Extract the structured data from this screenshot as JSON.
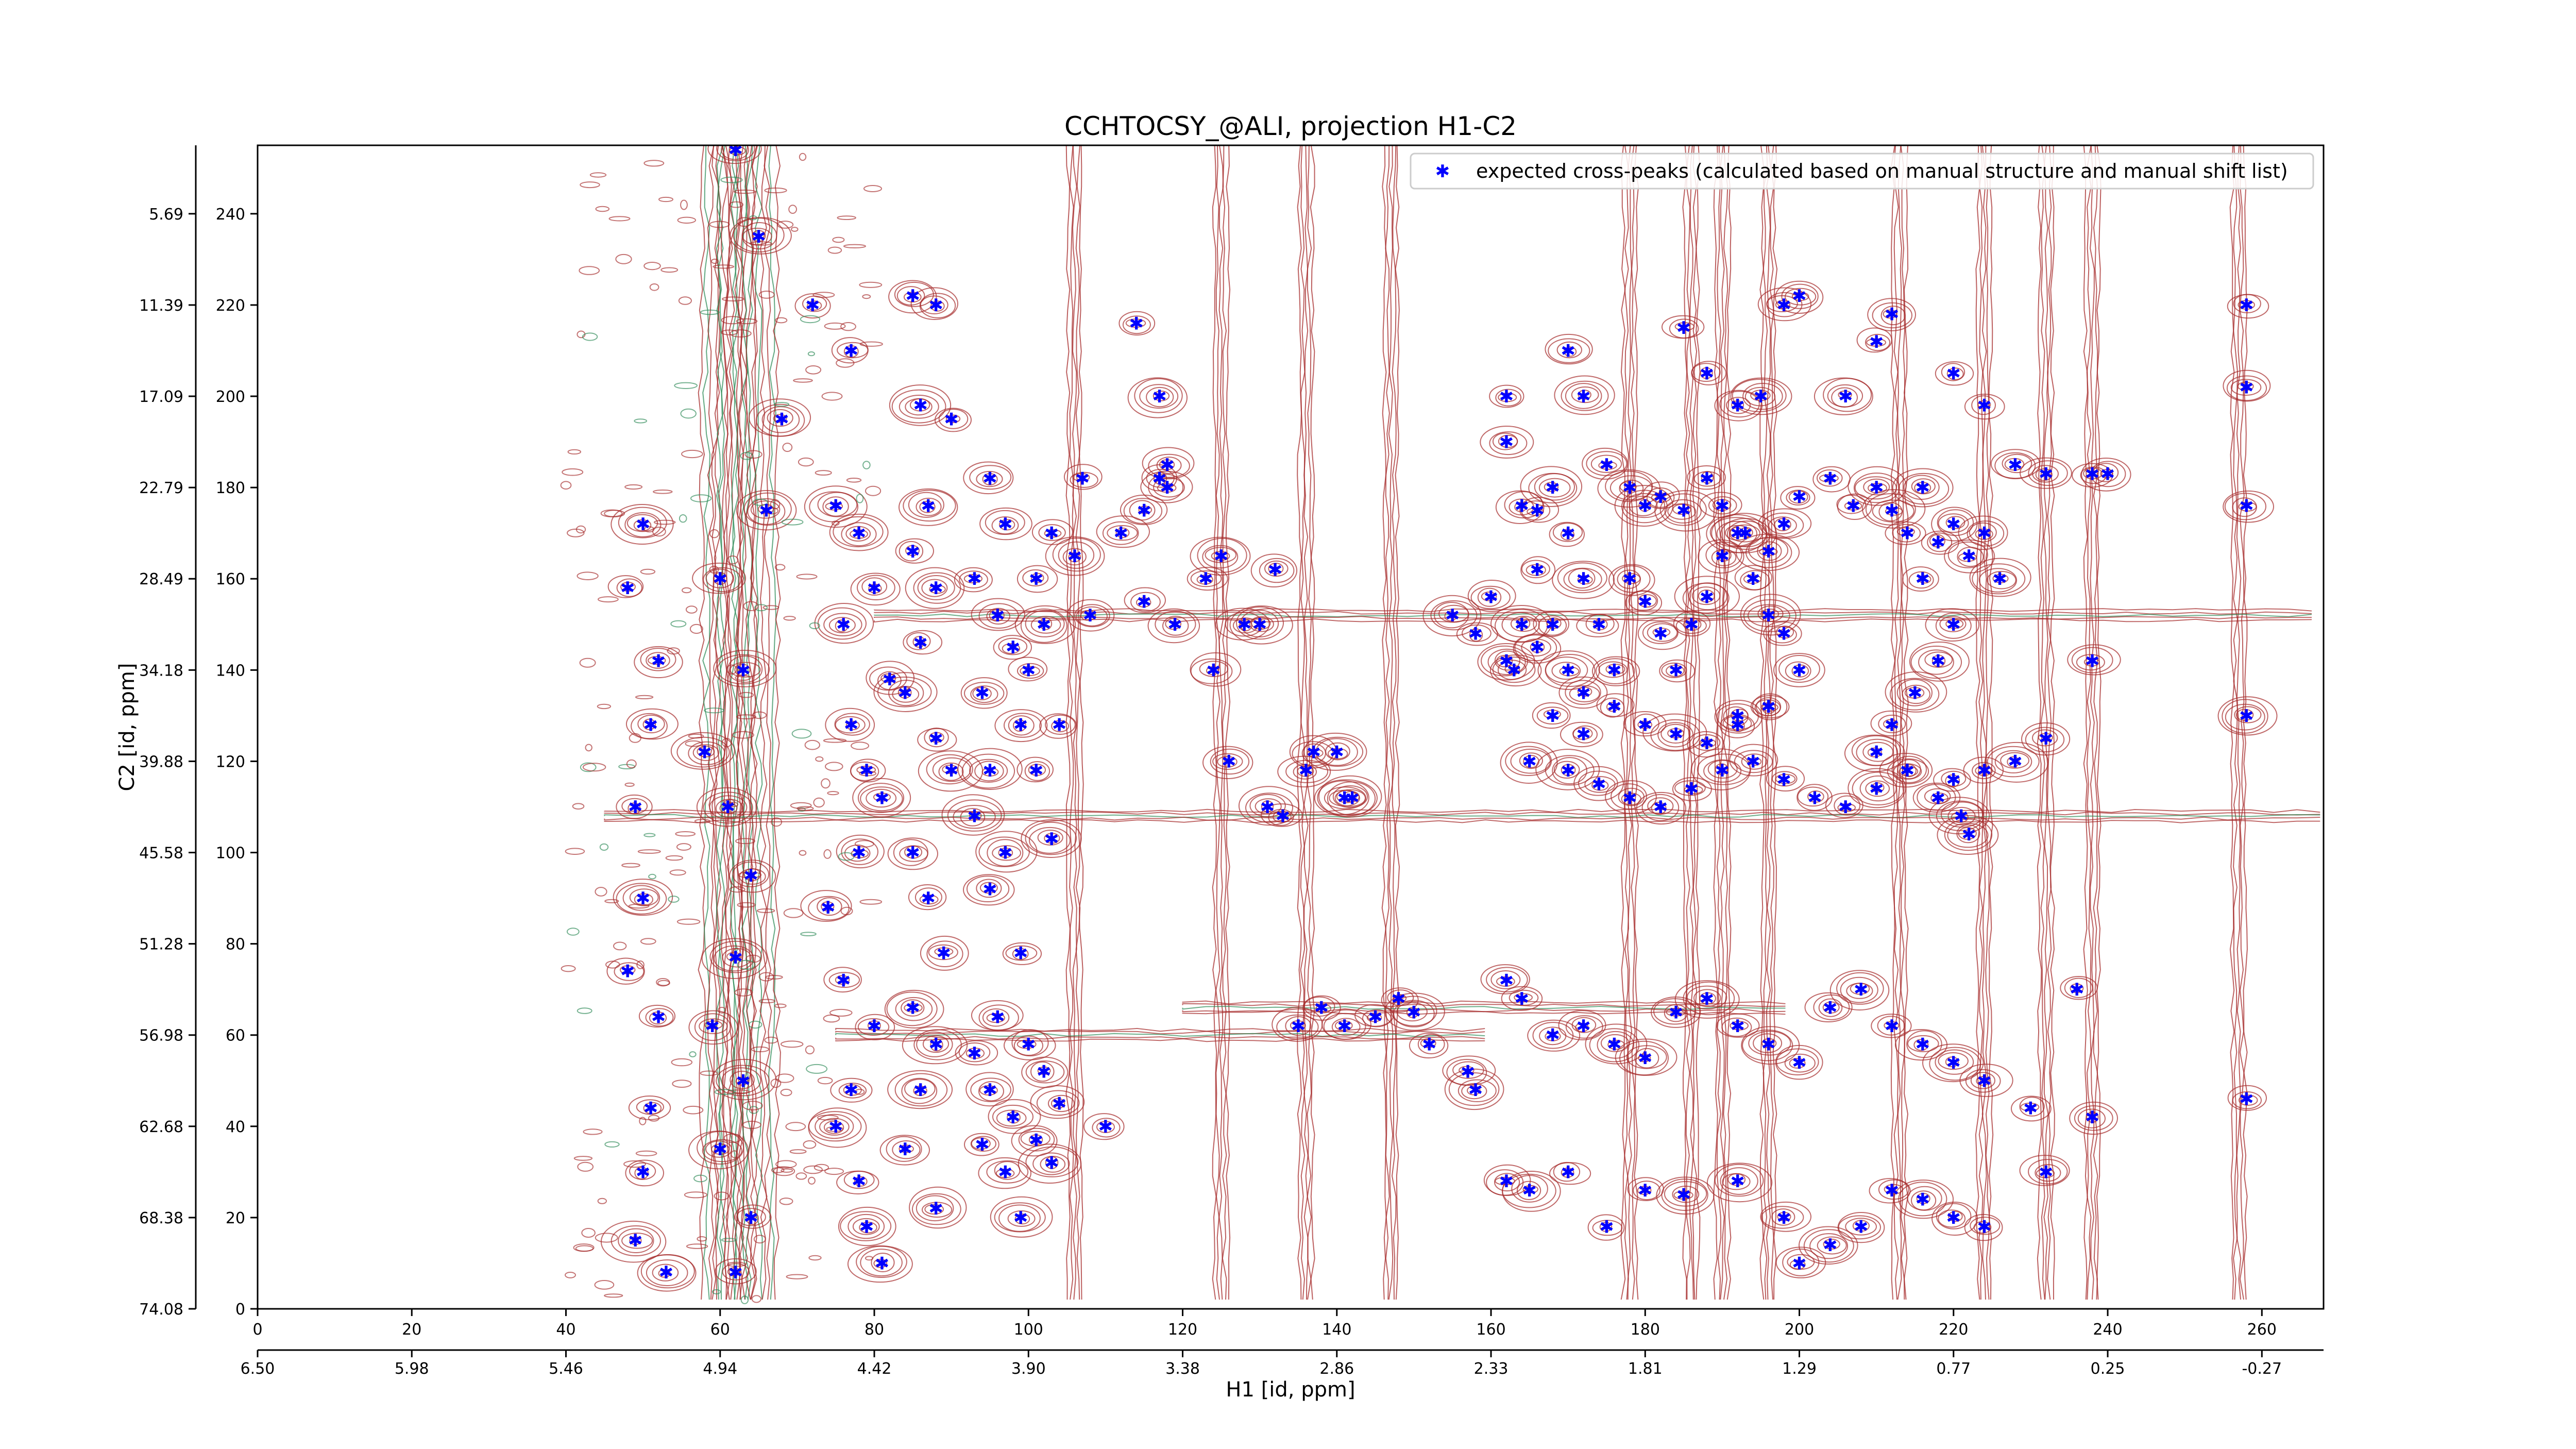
{
  "chart_data": {
    "type": "scatter",
    "title": "CCHTOCSY_@ALI, projection H1-C2",
    "xlabel": "H1 [id, ppm]",
    "ylabel": "C2 [id, ppm]",
    "xlim": [
      0,
      268
    ],
    "ylim": [
      0,
      255
    ],
    "x_ticks": [
      "0",
      "20",
      "40",
      "60",
      "80",
      "100",
      "120",
      "140",
      "160",
      "180",
      "200",
      "220",
      "240",
      "260"
    ],
    "x_tick_values": [
      0,
      20,
      40,
      60,
      80,
      100,
      120,
      140,
      160,
      180,
      200,
      220,
      240,
      260
    ],
    "y_ticks": [
      "0",
      "20",
      "40",
      "60",
      "80",
      "100",
      "120",
      "140",
      "160",
      "180",
      "200",
      "220",
      "240"
    ],
    "y_tick_values": [
      0,
      20,
      40,
      60,
      80,
      100,
      120,
      140,
      160,
      180,
      200,
      220,
      240
    ],
    "x2_ticks": [
      "6.50",
      "5.98",
      "5.46",
      "4.94",
      "4.42",
      "3.90",
      "3.38",
      "2.86",
      "2.33",
      "1.81",
      "1.29",
      "0.77",
      "0.25",
      "-0.27"
    ],
    "x2_tick_values": [
      0,
      20,
      40,
      60,
      80,
      100,
      120,
      140,
      160,
      180,
      200,
      220,
      240,
      260
    ],
    "y2_ticks": [
      "74.08",
      "68.38",
      "62.68",
      "56.98",
      "51.28",
      "45.58",
      "39.88",
      "34.18",
      "28.49",
      "22.79",
      "17.09",
      "11.39",
      "5.69"
    ],
    "y2_tick_values": [
      0,
      20,
      40,
      60,
      80,
      100,
      120,
      140,
      160,
      180,
      200,
      220,
      240
    ],
    "legend": {
      "placement": "top-right",
      "label": "expected cross-peaks (calculated based on manual structure and manual shift list)"
    },
    "colors": {
      "positive_contours": "#a52a2a",
      "negative_contours": "#2e8b57",
      "markers": "#0000ff"
    },
    "contour_columns": [
      {
        "x": 62,
        "kind": "strong"
      },
      {
        "x": 60,
        "kind": "strong"
      },
      {
        "x": 65,
        "kind": "strong"
      },
      {
        "x": 106,
        "kind": "line"
      },
      {
        "x": 125,
        "kind": "line"
      },
      {
        "x": 136,
        "kind": "line"
      },
      {
        "x": 147,
        "kind": "line"
      },
      {
        "x": 178,
        "kind": "line"
      },
      {
        "x": 186,
        "kind": "line"
      },
      {
        "x": 190,
        "kind": "line"
      },
      {
        "x": 196,
        "kind": "line"
      },
      {
        "x": 213,
        "kind": "line"
      },
      {
        "x": 224,
        "kind": "line"
      },
      {
        "x": 232,
        "kind": "line"
      },
      {
        "x": 238,
        "kind": "line"
      },
      {
        "x": 257,
        "kind": "line"
      }
    ],
    "contour_rows": [
      {
        "y": 108,
        "x0": 45,
        "x1": 268,
        "kind": "line"
      },
      {
        "y": 152,
        "x0": 80,
        "x1": 268,
        "kind": "line"
      },
      {
        "y": 60,
        "x0": 75,
        "x1": 160,
        "kind": "line"
      },
      {
        "y": 66,
        "x0": 120,
        "x1": 200,
        "kind": "line"
      }
    ],
    "series": [
      {
        "name": "expected cross-peaks (calculated based on manual structure and manual shift list)",
        "points": [
          [
            62,
            254
          ],
          [
            65,
            235
          ],
          [
            72,
            220
          ],
          [
            77,
            210
          ],
          [
            68,
            195
          ],
          [
            66,
            175
          ],
          [
            60,
            160
          ],
          [
            63,
            140
          ],
          [
            58,
            122
          ],
          [
            61,
            110
          ],
          [
            64,
            95
          ],
          [
            62,
            77
          ],
          [
            59,
            62
          ],
          [
            63,
            50
          ],
          [
            60,
            35
          ],
          [
            64,
            20
          ],
          [
            62,
            8
          ],
          [
            50,
            172
          ],
          [
            48,
            158
          ],
          [
            52,
            142
          ],
          [
            51,
            128
          ],
          [
            49,
            110
          ],
          [
            50,
            90
          ],
          [
            48,
            74
          ],
          [
            52,
            64
          ],
          [
            51,
            44
          ],
          [
            50,
            30
          ],
          [
            49,
            15
          ],
          [
            53,
            8
          ],
          [
            75,
            176
          ],
          [
            78,
            170
          ],
          [
            80,
            158
          ],
          [
            76,
            150
          ],
          [
            82,
            138
          ],
          [
            77,
            128
          ],
          [
            79,
            118
          ],
          [
            81,
            112
          ],
          [
            78,
            100
          ],
          [
            74,
            88
          ],
          [
            76,
            72
          ],
          [
            80,
            62
          ],
          [
            77,
            48
          ],
          [
            75,
            40
          ],
          [
            78,
            28
          ],
          [
            79,
            18
          ],
          [
            81,
            10
          ],
          [
            85,
            222
          ],
          [
            88,
            220
          ],
          [
            86,
            198
          ],
          [
            90,
            195
          ],
          [
            87,
            176
          ],
          [
            85,
            166
          ],
          [
            88,
            158
          ],
          [
            86,
            146
          ],
          [
            84,
            135
          ],
          [
            88,
            125
          ],
          [
            90,
            118
          ],
          [
            85,
            100
          ],
          [
            87,
            90
          ],
          [
            89,
            78
          ],
          [
            85,
            66
          ],
          [
            88,
            58
          ],
          [
            86,
            48
          ],
          [
            84,
            35
          ],
          [
            88,
            22
          ],
          [
            95,
            182
          ],
          [
            97,
            172
          ],
          [
            93,
            160
          ],
          [
            96,
            152
          ],
          [
            98,
            145
          ],
          [
            94,
            135
          ],
          [
            99,
            128
          ],
          [
            95,
            118
          ],
          [
            93,
            108
          ],
          [
            97,
            100
          ],
          [
            95,
            92
          ],
          [
            99,
            78
          ],
          [
            96,
            64
          ],
          [
            93,
            56
          ],
          [
            95,
            48
          ],
          [
            98,
            42
          ],
          [
            94,
            36
          ],
          [
            97,
            30
          ],
          [
            99,
            20
          ],
          [
            101,
            160
          ],
          [
            103,
            170
          ],
          [
            102,
            150
          ],
          [
            100,
            140
          ],
          [
            104,
            128
          ],
          [
            101,
            118
          ],
          [
            103,
            103
          ],
          [
            100,
            58
          ],
          [
            102,
            52
          ],
          [
            104,
            45
          ],
          [
            101,
            37
          ],
          [
            103,
            32
          ],
          [
            106,
            165
          ],
          [
            108,
            152
          ],
          [
            107,
            182
          ],
          [
            110,
            40
          ],
          [
            112,
            170
          ],
          [
            115,
            175
          ],
          [
            115,
            155
          ],
          [
            119,
            150
          ],
          [
            117,
            182
          ],
          [
            118,
            180
          ],
          [
            114,
            216
          ],
          [
            117,
            200
          ],
          [
            118,
            185
          ],
          [
            123,
            160
          ],
          [
            124,
            140
          ],
          [
            125,
            165
          ],
          [
            126,
            120
          ],
          [
            128,
            150
          ],
          [
            130,
            150
          ],
          [
            132,
            162
          ],
          [
            136,
            118
          ],
          [
            137,
            122
          ],
          [
            140,
            122
          ],
          [
            141,
            112
          ],
          [
            142,
            112
          ],
          [
            133,
            108
          ],
          [
            131,
            110
          ],
          [
            135,
            62
          ],
          [
            138,
            66
          ],
          [
            141,
            62
          ],
          [
            145,
            64
          ],
          [
            148,
            68
          ],
          [
            150,
            65
          ],
          [
            152,
            58
          ],
          [
            157,
            52
          ],
          [
            158,
            48
          ],
          [
            162,
            72
          ],
          [
            155,
            152
          ],
          [
            158,
            148
          ],
          [
            160,
            156
          ],
          [
            163,
            140
          ],
          [
            164,
            150
          ],
          [
            166,
            175
          ],
          [
            168,
            180
          ],
          [
            170,
            170
          ],
          [
            172,
            160
          ],
          [
            174,
            150
          ],
          [
            176,
            140
          ],
          [
            172,
            135
          ],
          [
            168,
            130
          ],
          [
            166,
            145
          ],
          [
            162,
            142
          ],
          [
            178,
            160
          ],
          [
            180,
            155
          ],
          [
            182,
            148
          ],
          [
            184,
            140
          ],
          [
            186,
            150
          ],
          [
            188,
            156
          ],
          [
            190,
            165
          ],
          [
            192,
            170
          ],
          [
            194,
            160
          ],
          [
            196,
            152
          ],
          [
            198,
            148
          ],
          [
            200,
            140
          ],
          [
            196,
            132
          ],
          [
            192,
            128
          ],
          [
            182,
            178
          ],
          [
            185,
            175
          ],
          [
            188,
            182
          ],
          [
            190,
            176
          ],
          [
            193,
            170
          ],
          [
            196,
            166
          ],
          [
            198,
            172
          ],
          [
            200,
            178
          ],
          [
            204,
            182
          ],
          [
            207,
            176
          ],
          [
            210,
            180
          ],
          [
            212,
            175
          ],
          [
            214,
            170
          ],
          [
            216,
            180
          ],
          [
            216,
            160
          ],
          [
            218,
            168
          ],
          [
            220,
            172
          ],
          [
            222,
            165
          ],
          [
            224,
            170
          ],
          [
            226,
            160
          ],
          [
            220,
            150
          ],
          [
            218,
            142
          ],
          [
            215,
            135
          ],
          [
            212,
            128
          ],
          [
            210,
            122
          ],
          [
            214,
            118
          ],
          [
            218,
            112
          ],
          [
            221,
            108
          ],
          [
            165,
            120
          ],
          [
            170,
            118
          ],
          [
            174,
            115
          ],
          [
            178,
            112
          ],
          [
            182,
            110
          ],
          [
            186,
            114
          ],
          [
            190,
            118
          ],
          [
            194,
            120
          ],
          [
            198,
            116
          ],
          [
            202,
            112
          ],
          [
            206,
            110
          ],
          [
            210,
            114
          ],
          [
            214,
            118
          ],
          [
            222,
            104
          ],
          [
            164,
            68
          ],
          [
            168,
            60
          ],
          [
            172,
            62
          ],
          [
            176,
            58
          ],
          [
            180,
            55
          ],
          [
            184,
            65
          ],
          [
            188,
            68
          ],
          [
            192,
            62
          ],
          [
            196,
            58
          ],
          [
            200,
            54
          ],
          [
            204,
            66
          ],
          [
            208,
            70
          ],
          [
            212,
            62
          ],
          [
            216,
            58
          ],
          [
            220,
            54
          ],
          [
            224,
            50
          ],
          [
            170,
            210
          ],
          [
            172,
            200
          ],
          [
            175,
            185
          ],
          [
            178,
            180
          ],
          [
            180,
            176
          ],
          [
            185,
            215
          ],
          [
            188,
            205
          ],
          [
            192,
            198
          ],
          [
            195,
            200
          ],
          [
            198,
            220
          ],
          [
            200,
            222
          ],
          [
            206,
            200
          ],
          [
            210,
            212
          ],
          [
            212,
            218
          ],
          [
            220,
            205
          ],
          [
            224,
            198
          ],
          [
            228,
            185
          ],
          [
            232,
            183
          ],
          [
            238,
            183
          ],
          [
            162,
            200
          ],
          [
            162,
            190
          ],
          [
            164,
            176
          ],
          [
            166,
            162
          ],
          [
            168,
            150
          ],
          [
            170,
            140
          ],
          [
            172,
            126
          ],
          [
            176,
            132
          ],
          [
            180,
            128
          ],
          [
            184,
            126
          ],
          [
            188,
            124
          ],
          [
            192,
            130
          ],
          [
            196,
            132
          ],
          [
            258,
            220
          ],
          [
            258,
            202
          ],
          [
            258,
            176
          ],
          [
            258,
            130
          ],
          [
            258,
            46
          ],
          [
            240,
            183
          ],
          [
            238,
            142
          ],
          [
            232,
            125
          ],
          [
            228,
            120
          ],
          [
            224,
            118
          ],
          [
            220,
            116
          ],
          [
            236,
            70
          ],
          [
            230,
            44
          ],
          [
            238,
            42
          ],
          [
            232,
            30
          ],
          [
            162,
            28
          ],
          [
            165,
            26
          ],
          [
            170,
            30
          ],
          [
            175,
            18
          ],
          [
            180,
            26
          ],
          [
            185,
            25
          ],
          [
            192,
            28
          ],
          [
            198,
            20
          ],
          [
            200,
            10
          ],
          [
            204,
            14
          ],
          [
            208,
            18
          ],
          [
            212,
            26
          ],
          [
            216,
            24
          ],
          [
            220,
            20
          ],
          [
            224,
            18
          ]
        ]
      }
    ]
  }
}
